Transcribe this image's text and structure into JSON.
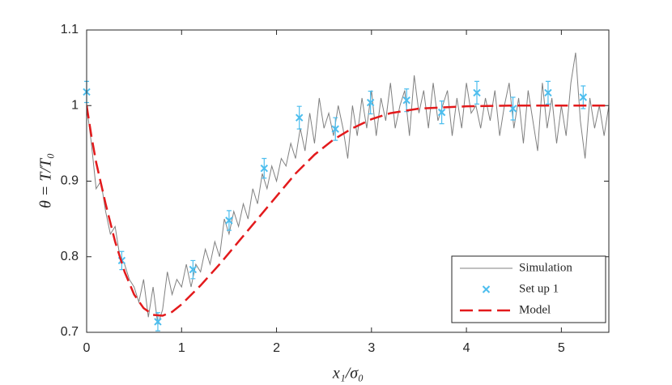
{
  "chart_data": {
    "type": "line",
    "xlabel": "x₁/σ₀",
    "ylabel": "θ = T/T₀",
    "xlim": [
      0,
      5.5
    ],
    "ylim": [
      0.7,
      1.1
    ],
    "xticks": [
      0,
      1,
      2,
      3,
      4,
      5
    ],
    "yticks": [
      0.7,
      0.8,
      0.9,
      1,
      1.1
    ],
    "legend": "lower right",
    "series": [
      {
        "name": "Simulation",
        "color": "#808080",
        "style": "line",
        "x": [
          0,
          0.05,
          0.1,
          0.15,
          0.2,
          0.25,
          0.3,
          0.35,
          0.4,
          0.45,
          0.5,
          0.55,
          0.6,
          0.65,
          0.7,
          0.75,
          0.8,
          0.85,
          0.9,
          0.95,
          1,
          1.05,
          1.1,
          1.15,
          1.2,
          1.25,
          1.3,
          1.35,
          1.4,
          1.45,
          1.5,
          1.55,
          1.6,
          1.65,
          1.7,
          1.75,
          1.8,
          1.85,
          1.9,
          1.95,
          2,
          2.05,
          2.1,
          2.15,
          2.2,
          2.25,
          2.3,
          2.35,
          2.4,
          2.45,
          2.5,
          2.55,
          2.6,
          2.65,
          2.7,
          2.75,
          2.8,
          2.85,
          2.9,
          2.95,
          3,
          3.05,
          3.1,
          3.15,
          3.2,
          3.25,
          3.3,
          3.35,
          3.4,
          3.45,
          3.5,
          3.55,
          3.6,
          3.65,
          3.7,
          3.75,
          3.8,
          3.85,
          3.9,
          3.95,
          4,
          4.05,
          4.1,
          4.15,
          4.2,
          4.25,
          4.3,
          4.35,
          4.4,
          4.45,
          4.5,
          4.55,
          4.6,
          4.65,
          4.7,
          4.75,
          4.8,
          4.85,
          4.9,
          4.95,
          5,
          5.05,
          5.1,
          5.15,
          5.2,
          5.25,
          5.3,
          5.35,
          5.4,
          5.45,
          5.5
        ],
        "values": [
          1.0,
          0.95,
          0.89,
          0.9,
          0.86,
          0.83,
          0.84,
          0.8,
          0.79,
          0.77,
          0.76,
          0.74,
          0.77,
          0.72,
          0.76,
          0.71,
          0.73,
          0.78,
          0.75,
          0.77,
          0.76,
          0.79,
          0.76,
          0.79,
          0.78,
          0.81,
          0.79,
          0.82,
          0.8,
          0.85,
          0.83,
          0.86,
          0.84,
          0.87,
          0.85,
          0.89,
          0.87,
          0.91,
          0.89,
          0.92,
          0.9,
          0.93,
          0.92,
          0.95,
          0.93,
          0.97,
          0.94,
          0.99,
          0.95,
          1.01,
          0.97,
          0.99,
          0.96,
          1.0,
          0.97,
          0.93,
          1.0,
          0.96,
          1.01,
          0.97,
          1.02,
          0.96,
          1.01,
          0.98,
          1.03,
          0.97,
          1.0,
          1.02,
          0.96,
          1.04,
          0.99,
          1.02,
          0.97,
          1.03,
          0.98,
          1.0,
          1.02,
          0.96,
          1.01,
          0.97,
          1.03,
          0.99,
          1.0,
          0.97,
          1.01,
          0.98,
          1.02,
          0.96,
          1.0,
          1.03,
          0.97,
          1.01,
          0.95,
          1.02,
          0.98,
          0.94,
          1.03,
          0.97,
          1.01,
          0.95,
          1.0,
          0.96,
          1.03,
          1.07,
          0.98,
          0.93,
          1.01,
          0.97,
          1.0,
          0.96,
          1.0
        ]
      },
      {
        "name": "Set up 1",
        "color": "#4dbeee",
        "style": "marker",
        "x": [
          0,
          0.37,
          0.75,
          1.12,
          1.5,
          1.87,
          2.24,
          2.62,
          2.99,
          3.37,
          3.74,
          4.11,
          4.49,
          4.86,
          5.23
        ],
        "values": [
          1.018,
          0.795,
          0.714,
          0.783,
          0.848,
          0.917,
          0.984,
          0.969,
          1.004,
          1.007,
          0.991,
          1.017,
          0.996,
          1.017,
          1.011
        ],
        "errors": [
          0.014,
          0.012,
          0.012,
          0.012,
          0.013,
          0.013,
          0.015,
          0.015,
          0.015,
          0.015,
          0.015,
          0.015,
          0.015,
          0.015,
          0.015
        ]
      },
      {
        "name": "Model",
        "color": "#e31a1c",
        "style": "dashed",
        "x": [
          0,
          0.05,
          0.1,
          0.2,
          0.3,
          0.4,
          0.5,
          0.6,
          0.7,
          0.8,
          0.9,
          1.0,
          1.2,
          1.4,
          1.6,
          1.8,
          2.0,
          2.2,
          2.4,
          2.6,
          2.8,
          3.0,
          3.2,
          3.5,
          4.0,
          4.5,
          5.0,
          5.5
        ],
        "values": [
          1.0,
          0.96,
          0.925,
          0.87,
          0.82,
          0.78,
          0.75,
          0.732,
          0.723,
          0.722,
          0.727,
          0.737,
          0.762,
          0.79,
          0.82,
          0.85,
          0.88,
          0.91,
          0.935,
          0.955,
          0.97,
          0.982,
          0.99,
          0.996,
          0.999,
          1.0,
          1.0,
          1.0
        ]
      }
    ]
  }
}
